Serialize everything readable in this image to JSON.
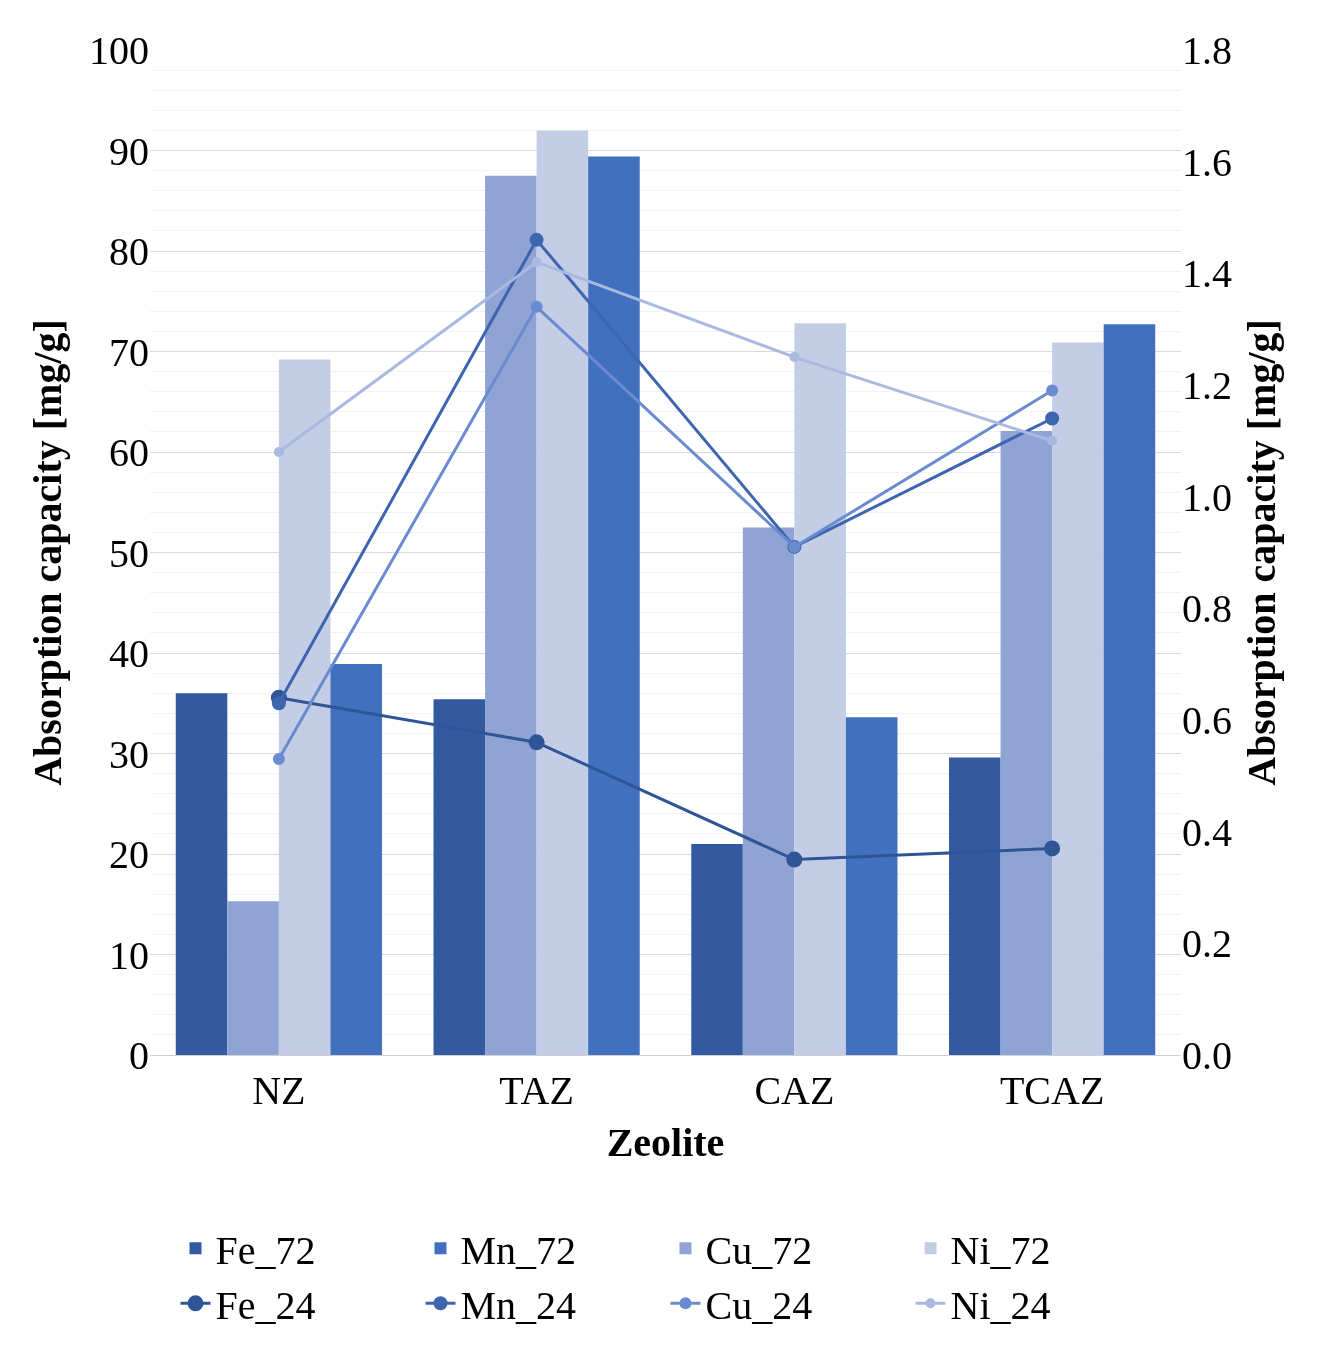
{
  "chart_data": {
    "type": "bar",
    "xlabel": "Zeolite",
    "ylabel": "Absorption capacity [mg/g]",
    "y2label": "Absorption capacity [mg/g]",
    "categories": [
      "NZ",
      "TAZ",
      "CAZ",
      "TCAZ"
    ],
    "series": [
      {
        "name": "Fe_72",
        "color": "#335aa0",
        "values": [
          36,
          35.4,
          21,
          29.6
        ]
      },
      {
        "name": "Mn_72",
        "color": "#4170be",
        "values": [
          38.9,
          89.4,
          33.6,
          72.7
        ]
      },
      {
        "name": "Cu_72",
        "color": "#8fa4d4",
        "values": [
          15.3,
          87.5,
          52.5,
          62.1
        ]
      },
      {
        "name": "Ni_72",
        "color": "#c4cde6",
        "values": [
          69.2,
          92,
          72.8,
          70.9
        ]
      },
      {
        "name": "Fe_24",
        "type": "line",
        "axis": "y2",
        "color": "#2f5597",
        "values": [
          0.64,
          0.56,
          0.35,
          0.37
        ]
      },
      {
        "name": "Mn_24",
        "type": "line",
        "axis": "y2",
        "color": "#3d65b0",
        "values": [
          0.63,
          1.46,
          0.91,
          1.14
        ]
      },
      {
        "name": "Cu_24",
        "type": "line",
        "axis": "y2",
        "color": "#6a8bd0",
        "values": [
          0.53,
          1.34,
          0.91,
          1.19
        ]
      },
      {
        "name": "Ni_24",
        "type": "line",
        "axis": "y2",
        "color": "#aab9e0",
        "values": [
          1.08,
          1.42,
          1.25,
          1.1
        ]
      }
    ],
    "ylim": [
      0,
      100
    ],
    "yticks": [
      0,
      10,
      20,
      30,
      40,
      50,
      60,
      70,
      80,
      90,
      100
    ],
    "y2lim": [
      0,
      1.8
    ],
    "y2ticks": [
      {
        "value": 0,
        "label": "0.0"
      },
      {
        "value": 0.2,
        "label": "0.2"
      },
      {
        "value": 0.4,
        "label": "0.4"
      },
      {
        "value": 0.6,
        "label": "0.6"
      },
      {
        "value": 0.8,
        "label": "0.8"
      },
      {
        "value": 1.0,
        "label": "1.0"
      },
      {
        "value": 1.2,
        "label": "1.2"
      },
      {
        "value": 1.4,
        "label": "1.4"
      },
      {
        "value": 1.6,
        "label": "1.6"
      },
      {
        "value": 1.8,
        "label": "1.8"
      }
    ],
    "grid": "y",
    "legend": "bottom",
    "marker": "circle",
    "line_style": "solid"
  }
}
